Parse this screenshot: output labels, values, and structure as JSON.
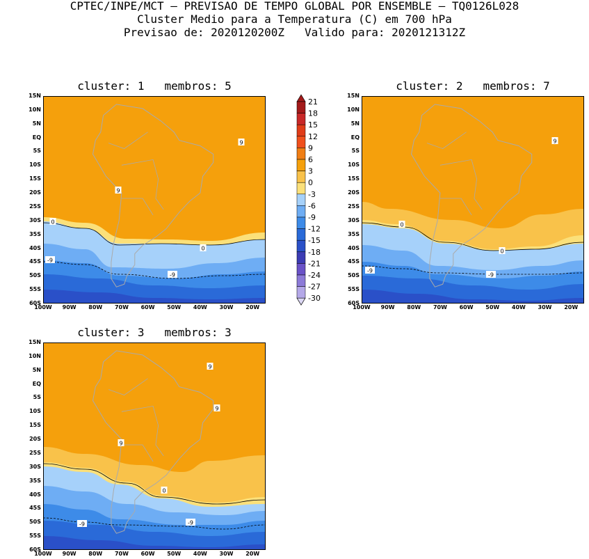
{
  "header": {
    "line1": "CPTEC/INPE/MCT – PREVISAO DE TEMPO GLOBAL POR ENSEMBLE – TQ0126L028",
    "line2": "Cluster Medio para a Temperatura (C) em 700 hPa",
    "line3": "Previsao de: 2020120200Z   Valido para: 2020121312Z"
  },
  "lat_labels": [
    "15N",
    "10N",
    "5N",
    "EQ",
    "5S",
    "10S",
    "15S",
    "20S",
    "25S",
    "30S",
    "35S",
    "40S",
    "45S",
    "50S",
    "55S",
    "60S"
  ],
  "lon_labels": [
    "100W",
    "90W",
    "80W",
    "70W",
    "60W",
    "50W",
    "40W",
    "30W",
    "20W"
  ],
  "colorbar": {
    "labels": [
      "21",
      "18",
      "15",
      "12",
      "9",
      "6",
      "3",
      "0",
      "-3",
      "-6",
      "-9",
      "-12",
      "-15",
      "-18",
      "-21",
      "-24",
      "-27",
      "-30"
    ],
    "colors": [
      "#a31a1a",
      "#c82828",
      "#e03c18",
      "#f0501c",
      "#f07e14",
      "#f5a00c",
      "#f9c24a",
      "#fbe07a",
      "#a6d1fa",
      "#6eadf4",
      "#3d8be8",
      "#2a6ad8",
      "#2a50c8",
      "#3c3cb4",
      "#6a52c8",
      "#8c7ad8",
      "#b4a8e8",
      "#dcd8f4"
    ]
  },
  "panels": [
    {
      "title": "cluster: 1   membros: 5",
      "contour_labels": [
        "9",
        "9",
        "0",
        "0",
        "-9",
        "-9"
      ]
    },
    {
      "title": "cluster: 2   membros: 7",
      "contour_labels": [
        "9",
        "0",
        "0",
        "-9",
        "-9"
      ]
    },
    {
      "title": "cluster: 3   membros: 3",
      "contour_labels": [
        "9",
        "9",
        "9",
        "0",
        "-9",
        "-9"
      ]
    }
  ]
}
